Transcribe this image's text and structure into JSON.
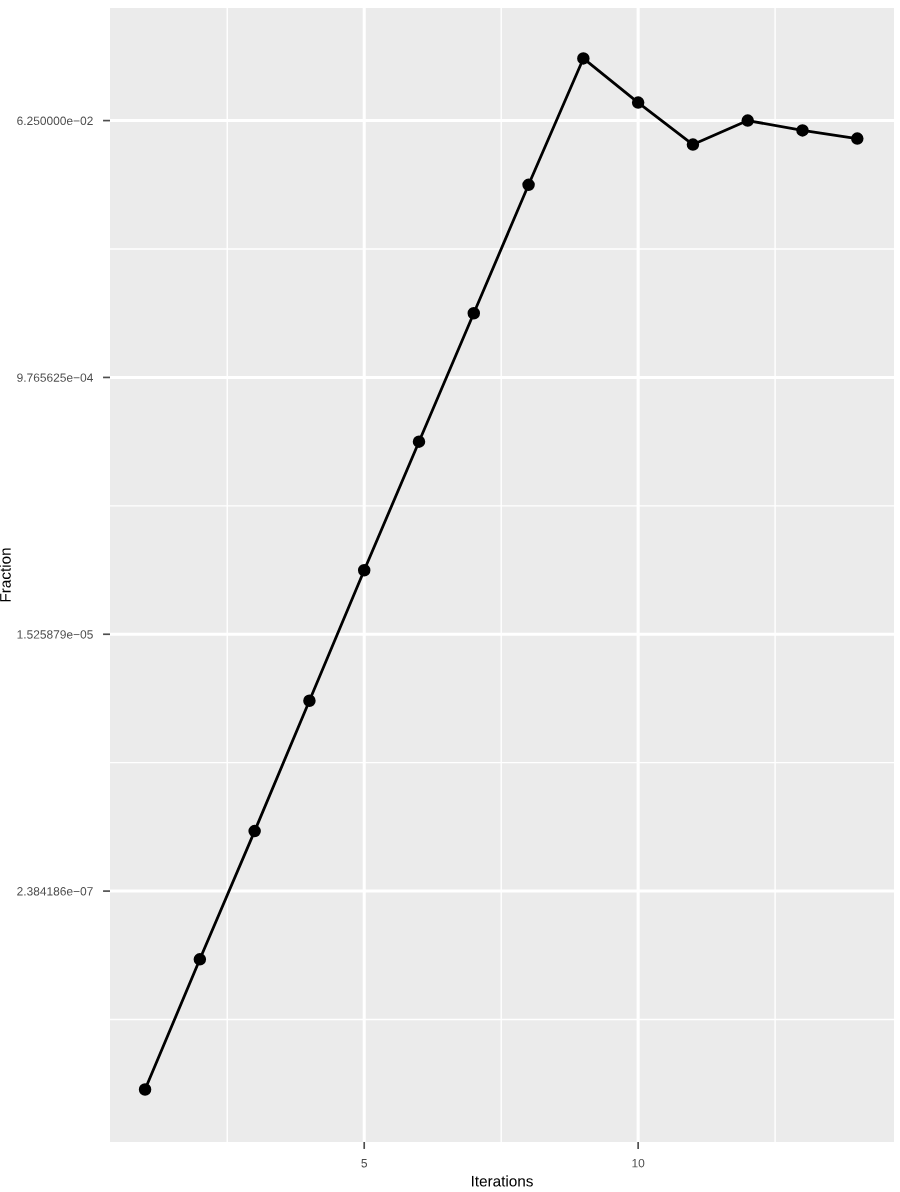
{
  "chart_data": {
    "type": "line",
    "xlabel": "Iterations",
    "ylabel": "Fraction",
    "x": [
      1,
      2,
      3,
      4,
      5,
      6,
      7,
      8,
      9,
      10,
      11,
      12,
      13,
      14
    ],
    "series": [
      {
        "color": "#000000",
        "values": [
          9.6e-09,
          7.9e-08,
          6.3e-07,
          5.2e-06,
          4.3e-05,
          0.000345,
          0.00276,
          0.0221,
          0.171,
          0.0837,
          0.0424,
          0.0625,
          0.0533,
          0.0467
        ]
      }
    ],
    "log": "y",
    "marker": "circle",
    "line_style": "solid",
    "grid": true,
    "xlim": [
      0.36,
      14.67
    ],
    "xticks": [
      5,
      10
    ],
    "ylim": [
      4.1e-09,
      0.387
    ],
    "yticks": [
      {
        "value": 2.384186e-07,
        "label": "2.384186e−07"
      },
      {
        "value": 1.525879e-05,
        "label": "1.525879e−05"
      },
      {
        "value": 0.0009765625,
        "label": "9.765625e−04"
      },
      {
        "value": 0.0625,
        "label": "6.250000e−02"
      }
    ]
  }
}
